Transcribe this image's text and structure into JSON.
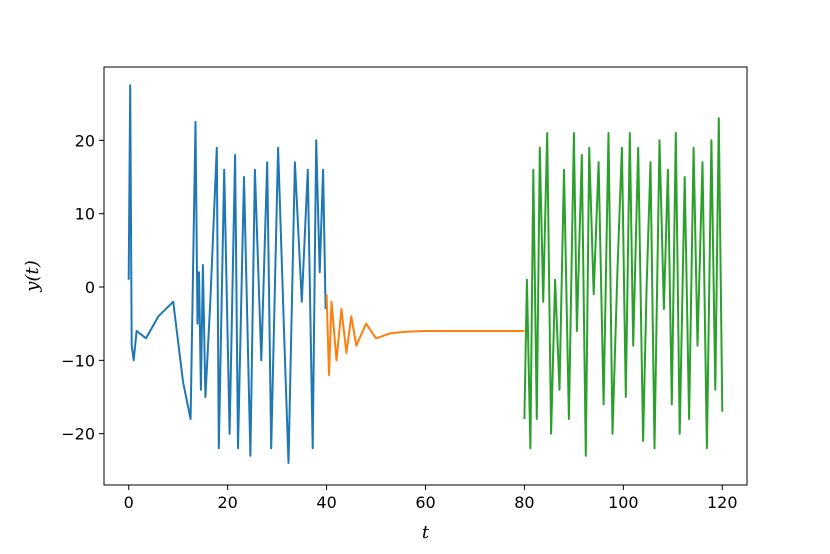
{
  "chart_data": {
    "type": "line",
    "xlabel": "t",
    "ylabel": "y(t)",
    "xlim": [
      -5,
      125
    ],
    "ylim": [
      -27,
      30
    ],
    "xticks": [
      0,
      20,
      40,
      60,
      80,
      100,
      120
    ],
    "xtick_labels": [
      "0",
      "20",
      "40",
      "60",
      "80",
      "100",
      "120"
    ],
    "yticks": [
      -20,
      -10,
      0,
      10,
      20
    ],
    "ytick_labels": [
      "−20",
      "−10",
      "0",
      "10",
      "20"
    ],
    "grid": false,
    "colors": [
      "#1f77b4",
      "#ff7f0e",
      "#2ca02c"
    ],
    "series": [
      {
        "x": [
          0,
          0.3,
          0.6,
          1.0,
          1.6,
          3.5,
          6,
          9,
          11,
          12.5,
          13.5,
          13.9,
          14.2,
          14.6,
          15.0,
          15.5,
          16.5,
          17.8,
          18.2,
          19.3,
          20.4,
          21.5,
          22.1,
          23.3,
          24.6,
          25.5,
          26.8,
          28.0,
          28.8,
          30.2,
          31.5,
          32.3,
          33.6,
          35.0,
          36.2,
          37.2,
          37.9,
          38.6,
          39.3,
          39.8
        ],
        "y": [
          1,
          27.5,
          -8,
          -10,
          -6,
          -7,
          -4,
          -2,
          -13,
          -18,
          22.5,
          -5,
          2,
          -14,
          3,
          -15,
          -2,
          19,
          -22,
          16,
          -20,
          18,
          -22,
          15,
          -23,
          16,
          -10,
          17,
          -22,
          19,
          -8,
          -24,
          17,
          -2,
          16,
          -22,
          20,
          2,
          16,
          -3
        ]
      },
      {
        "x": [
          40,
          40.5,
          41,
          42,
          43,
          44,
          45,
          46,
          48,
          50,
          53,
          56,
          60,
          70,
          80
        ],
        "y": [
          -1,
          -12,
          -2,
          -10,
          -3,
          -9,
          -4,
          -8,
          -5,
          -7,
          -6.3,
          -6.1,
          -6,
          -6,
          -6
        ]
      },
      {
        "x": [
          80,
          80.5,
          81.2,
          81.8,
          82.5,
          83.1,
          83.8,
          84.6,
          85.4,
          86.2,
          87.1,
          88.0,
          89.0,
          90.0,
          90.6,
          91.6,
          92.4,
          93.1,
          94.0,
          95.0,
          96.0,
          97.0,
          97.8,
          98.8,
          99.7,
          100.5,
          101.3,
          102.0,
          103.0,
          104.0,
          104.7,
          105.5,
          106.3,
          107.3,
          108.2,
          109.0,
          109.8,
          110.6,
          111.4,
          112.4,
          113.3,
          114.2,
          115.0,
          116.0,
          116.9,
          117.8,
          118.6,
          119.3,
          120.0
        ],
        "y": [
          -18,
          1,
          -22,
          16,
          -18,
          19,
          -2,
          21,
          -20,
          1,
          -14,
          16,
          -18,
          21,
          -6,
          18,
          -23,
          19,
          -1,
          17,
          -16,
          21,
          -20,
          2,
          19,
          -15,
          21,
          -8,
          19,
          -21,
          0,
          17,
          -22,
          20,
          -3,
          16,
          -16,
          21,
          -20,
          15,
          -18,
          19,
          -8,
          17,
          -22,
          20,
          -14,
          23,
          -17
        ]
      }
    ]
  }
}
